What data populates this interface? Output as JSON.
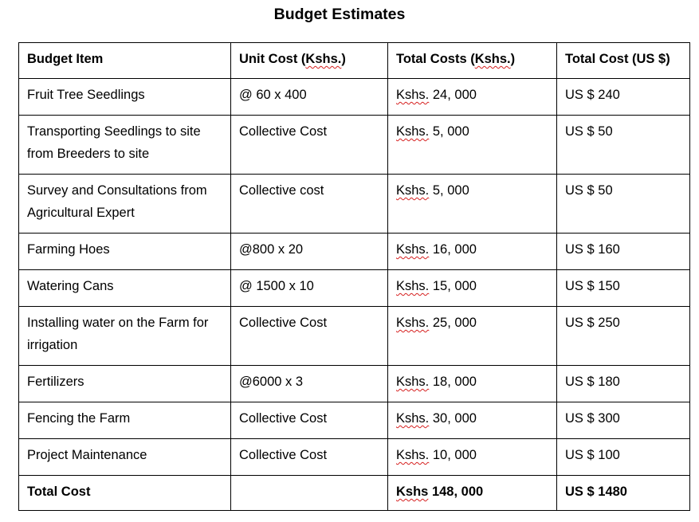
{
  "title": "Budget Estimates",
  "table": {
    "headers": [
      "Budget Item",
      "Unit Cost (Kshs.)",
      "Total Costs (Kshs.)",
      "Total Cost (US $)"
    ],
    "rows": [
      {
        "item": "Fruit Tree Seedlings",
        "unit_cost": "@ 60 x 400",
        "total_kshs": "Kshs. 24, 000",
        "total_usd": "US $ 240"
      },
      {
        "item": "Transporting Seedlings to site from Breeders to site",
        "unit_cost": "Collective Cost",
        "total_kshs": "Kshs. 5, 000",
        "total_usd": "US $ 50"
      },
      {
        "item": "Survey and Consultations from Agricultural Expert",
        "unit_cost": "Collective cost",
        "total_kshs": "Kshs. 5, 000",
        "total_usd": "US $ 50"
      },
      {
        "item": "Farming Hoes",
        "unit_cost": "@800 x 20",
        "total_kshs": "Kshs. 16, 000",
        "total_usd": "US $ 160"
      },
      {
        "item": "Watering Cans",
        "unit_cost": "@ 1500 x 10",
        "total_kshs": "Kshs. 15, 000",
        "total_usd": "US $ 150"
      },
      {
        "item": "Installing water on the Farm for irrigation",
        "unit_cost": "Collective Cost",
        "total_kshs": "Kshs. 25, 000",
        "total_usd": "US $ 250"
      },
      {
        "item": "Fertilizers",
        "unit_cost": "@6000 x 3",
        "total_kshs": "Kshs. 18, 000",
        "total_usd": "US $ 180"
      },
      {
        "item": "Fencing the Farm",
        "unit_cost": "Collective Cost",
        "total_kshs": "Kshs. 30, 000",
        "total_usd": "US $ 300"
      },
      {
        "item": "Project Maintenance",
        "unit_cost": "Collective Cost",
        "total_kshs": "Kshs. 10, 000",
        "total_usd": "US $ 100"
      }
    ],
    "total": {
      "label": "Total Cost",
      "unit_cost": "",
      "total_kshs": "Kshs 148, 000",
      "total_usd": "US $ 1480"
    }
  },
  "spellcheck_color": "#d6201f"
}
